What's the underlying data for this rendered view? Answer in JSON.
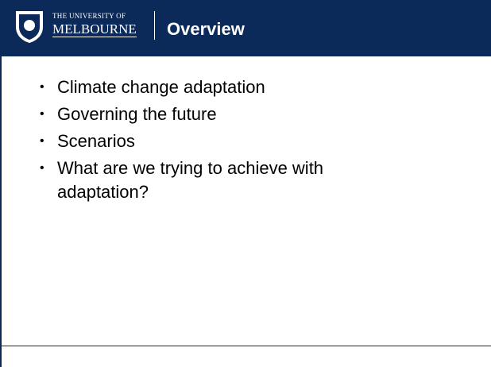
{
  "header": {
    "university_line1": "THE UNIVERSITY OF",
    "university_line2": "MELBOURNE",
    "title": "Overview"
  },
  "bullets": [
    "Climate change adaptation",
    "Governing the future",
    "Scenarios",
    "What are we trying to achieve with adaptation?"
  ]
}
